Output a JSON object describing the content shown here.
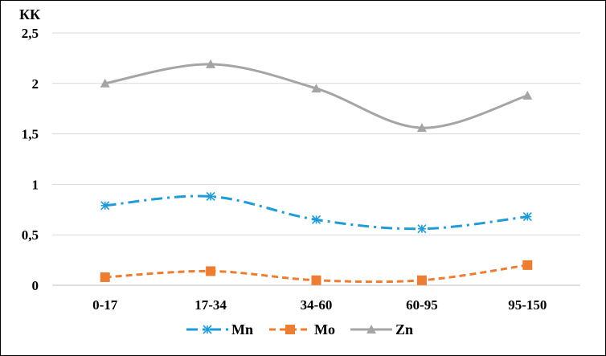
{
  "chart_data": {
    "type": "line",
    "ylabel": "КК",
    "categories": [
      "0-17",
      "17-34",
      "34-60",
      "60-95",
      "95-150"
    ],
    "y_ticks": [
      "0",
      "0,5",
      "1",
      "1,5",
      "2",
      "2,5"
    ],
    "ylim": [
      0,
      2.5
    ],
    "grid": true,
    "legend_position": "bottom",
    "series": [
      {
        "name": "Mn",
        "values": [
          0.79,
          0.88,
          0.65,
          0.56,
          0.68
        ],
        "color": "#1f9bd7",
        "marker": "star",
        "dash": "dash-dot"
      },
      {
        "name": "Mo",
        "values": [
          0.08,
          0.14,
          0.05,
          0.05,
          0.2
        ],
        "color": "#ed7d31",
        "marker": "square",
        "dash": "dash"
      },
      {
        "name": "Zn",
        "values": [
          2.0,
          2.19,
          1.95,
          1.56,
          1.88
        ],
        "color": "#a5a5a5",
        "marker": "triangle",
        "dash": "solid"
      }
    ]
  }
}
